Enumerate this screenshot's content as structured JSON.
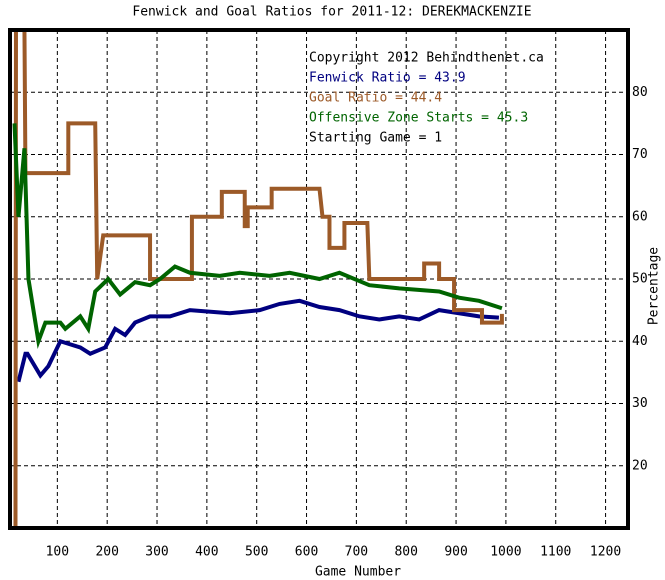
{
  "chart_data": {
    "type": "line",
    "title": "Fenwick and Goal Ratios for 2011-12: DEREKMACKENZIE",
    "xlabel": "Game Number",
    "ylabel": "Percentage",
    "annotations": [
      "Copyright 2012 Behindthenet.ca",
      "Starting Game = 1"
    ],
    "xlim": [
      5,
      1245
    ],
    "ylim": [
      10,
      90
    ],
    "xticks": [
      100,
      200,
      300,
      400,
      500,
      600,
      700,
      800,
      900,
      1000,
      1100,
      1200
    ],
    "yticks": [
      20,
      30,
      40,
      50,
      60,
      70,
      80
    ],
    "grid": true,
    "series": [
      {
        "name": "Fenwick Ratio = 43.9",
        "color": "#000080",
        "x": [
          22,
          36,
          40,
          66,
          82,
          106,
          146,
          166,
          196,
          216,
          236,
          256,
          286,
          326,
          366,
          446,
          506,
          546,
          586,
          626,
          666,
          706,
          746,
          786,
          826,
          866,
          906,
          946,
          986
        ],
        "values": [
          33.5,
          38,
          38,
          34.5,
          36,
          40,
          39,
          38,
          39,
          42,
          41,
          43,
          44,
          44,
          45,
          44.5,
          45,
          46,
          46.5,
          45.5,
          45,
          44,
          43.5,
          44,
          43.5,
          45,
          44.5,
          44,
          43.8
        ]
      },
      {
        "name": "Goal Ratio = 44.4",
        "color": "#9c5a28",
        "x": [
          16,
          17,
          34,
          36,
          122,
          122,
          176,
          180,
          192,
          286,
          286,
          370,
          370,
          430,
          430,
          476,
          476,
          482,
          482,
          530,
          530,
          626,
          632,
          646,
          646,
          676,
          676,
          722,
          726,
          836,
          836,
          866,
          866,
          896,
          896,
          952,
          952,
          992,
          992
        ],
        "values": [
          10,
          90,
          90,
          67,
          67,
          75,
          75,
          50,
          57,
          57,
          50,
          50,
          60,
          60,
          64,
          64,
          58.5,
          58.5,
          61.5,
          61.5,
          64.5,
          64.5,
          60,
          60,
          55,
          55,
          59,
          59,
          50,
          50,
          52.5,
          52.5,
          50,
          50,
          45,
          45,
          43,
          43,
          44.4
        ]
      },
      {
        "name": "Offensive Zone Starts = 45.3",
        "color": "#006400",
        "x": [
          14,
          22,
          34,
          42,
          62,
          76,
          106,
          116,
          146,
          162,
          176,
          202,
          226,
          256,
          286,
          306,
          336,
          366,
          426,
          466,
          526,
          566,
          626,
          666,
          726,
          786,
          866,
          906,
          946,
          992
        ],
        "values": [
          75,
          60,
          71,
          50,
          40,
          43,
          43,
          42,
          44,
          42,
          48,
          50,
          47.5,
          49.5,
          49,
          50,
          52,
          51,
          50.5,
          51,
          50.5,
          51,
          50,
          51,
          49,
          48.5,
          48,
          47,
          46.5,
          45.3
        ]
      }
    ]
  }
}
